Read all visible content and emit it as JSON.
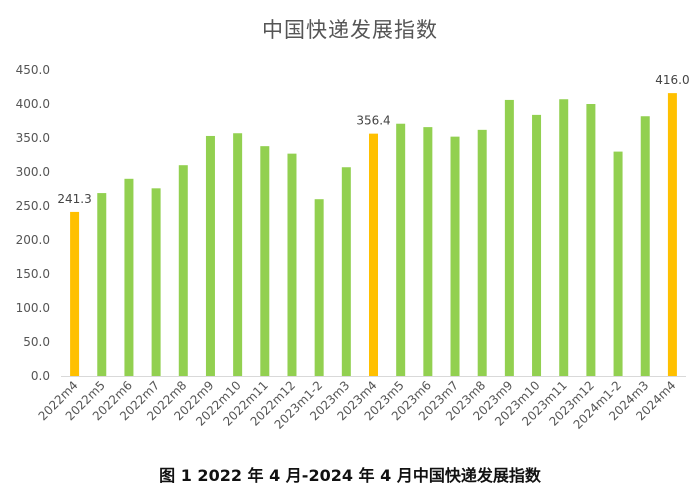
{
  "caption": "图 1 2022 年 4 月-2024 年 4 月中国快递发展指数",
  "chart_data": {
    "type": "bar",
    "title": "中国快递发展指数",
    "xlabel": "",
    "ylabel": "",
    "ylim": [
      0,
      450
    ],
    "yticks": [
      "0.0",
      "50.0",
      "100.0",
      "150.0",
      "200.0",
      "250.0",
      "300.0",
      "350.0",
      "400.0",
      "450.0"
    ],
    "grid": false,
    "legend": "none",
    "categories": [
      "2022m4",
      "2022m5",
      "2022m6",
      "2022m7",
      "2022m8",
      "2022m9",
      "2022m10",
      "2022m11",
      "2022m12",
      "2023m1-2",
      "2023m3",
      "2023m4",
      "2023m5",
      "2023m6",
      "2023m7",
      "2023m8",
      "2023m9",
      "2023m10",
      "2023m11",
      "2023m12",
      "2024m1-2",
      "2024m3",
      "2024m4"
    ],
    "values": [
      241.3,
      269,
      290,
      276,
      310,
      353,
      357,
      338,
      327,
      260,
      307,
      356.4,
      371,
      366,
      352,
      362,
      406,
      384,
      407,
      400,
      330,
      382,
      416.0
    ],
    "highlight": [
      0,
      11,
      22
    ],
    "data_labels": {
      "0": "241.3",
      "11": "356.4",
      "22": "416.0"
    },
    "colors": {
      "bar": "#92d050",
      "highlight": "#ffc000",
      "axis": "#d9d9d9"
    }
  }
}
